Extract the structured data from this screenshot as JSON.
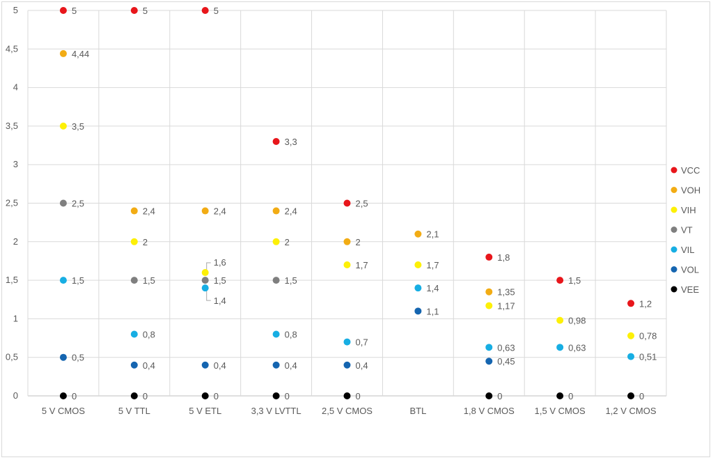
{
  "chart_data": {
    "type": "scatter",
    "categories": [
      "5 V CMOS",
      "5 V TTL",
      "5 V ETL",
      "3,3 V LVTTL",
      "2,5 V CMOS",
      "BTL",
      "1,8 V CMOS",
      "1,5 V CMOS",
      "1,2 V CMOS"
    ],
    "ylim": [
      0,
      5
    ],
    "yticks": [
      "0",
      "0,5",
      "1",
      "1,5",
      "2",
      "2,5",
      "3",
      "3,5",
      "4",
      "4,5",
      "5"
    ],
    "grid": true,
    "legend_position": "right",
    "series": [
      {
        "name": "VCC",
        "color": "#e8161b",
        "values": [
          5,
          5,
          5,
          3.3,
          2.5,
          null,
          1.8,
          1.5,
          1.2
        ],
        "labels": [
          "5",
          "5",
          "5",
          "3,3",
          "2,5",
          "",
          "1,8",
          "1,5",
          "1,2"
        ]
      },
      {
        "name": "VOH",
        "color": "#f2ac14",
        "values": [
          4.44,
          2.4,
          2.4,
          2.4,
          2,
          2.1,
          1.35,
          null,
          null
        ],
        "labels": [
          "4,44",
          "2,4",
          "2,4",
          "2,4",
          "2",
          "2,1",
          "1,35",
          "",
          ""
        ]
      },
      {
        "name": "VIH",
        "color": "#fdf007",
        "values": [
          3.5,
          2,
          1.6,
          2,
          1.7,
          1.7,
          1.17,
          0.98,
          0.78
        ],
        "labels": [
          "3,5",
          "2",
          "1,6",
          "2",
          "1,7",
          "1,7",
          "1,17",
          "0,98",
          "0,78"
        ]
      },
      {
        "name": "VT",
        "color": "#7f7f7f",
        "values": [
          2.5,
          1.5,
          1.5,
          1.5,
          null,
          null,
          null,
          null,
          null
        ],
        "labels": [
          "2,5",
          "1,5",
          "1,5",
          "1,5",
          "",
          "",
          "",
          "",
          ""
        ]
      },
      {
        "name": "VIL",
        "color": "#17aee3",
        "values": [
          1.5,
          0.8,
          1.4,
          0.8,
          0.7,
          1.4,
          0.63,
          0.63,
          0.51
        ],
        "labels": [
          "1,5",
          "0,8",
          "1,4",
          "0,8",
          "0,7",
          "1,4",
          "0,63",
          "0,63",
          "0,51"
        ]
      },
      {
        "name": "VOL",
        "color": "#1565b0",
        "values": [
          0.5,
          0.4,
          0.4,
          0.4,
          0.4,
          1.1,
          0.45,
          null,
          null
        ],
        "labels": [
          "0,5",
          "0,4",
          "0,4",
          "0,4",
          "0,4",
          "1,1",
          "0,45",
          "",
          ""
        ]
      },
      {
        "name": "VEE",
        "color": "#000000",
        "values": [
          0,
          0,
          0,
          0,
          0,
          null,
          0,
          0,
          0
        ],
        "labels": [
          "0",
          "0",
          "0",
          "0",
          "0",
          "",
          "0",
          "0",
          "0"
        ]
      }
    ]
  }
}
